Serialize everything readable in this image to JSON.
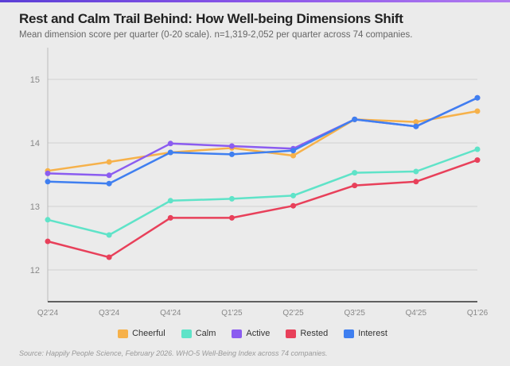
{
  "title": "Rest and Calm Trail Behind: How Well-being Dimensions Shift",
  "subtitle": "Mean dimension score per quarter (0-20 scale). n=1,319-2,052 per quarter across 74 companies.",
  "source": "Source: Happily People Science, February 2026. WHO-5 Well-Being Index across 74 companies.",
  "chart_data": {
    "type": "line",
    "categories": [
      "Q2'24",
      "Q3'24",
      "Q4'24",
      "Q1'25",
      "Q2'25",
      "Q3'25",
      "Q4'25",
      "Q1'26"
    ],
    "ylim": [
      11.5,
      15.5
    ],
    "yticks": [
      "12",
      "13",
      "14",
      "15"
    ],
    "grid": true,
    "legend_placement": "bottom",
    "series": [
      {
        "name": "Cheerful",
        "color": "#f6b14a",
        "values": [
          13.56,
          13.7,
          13.85,
          13.92,
          13.8,
          14.37,
          14.33,
          14.5
        ]
      },
      {
        "name": "Calm",
        "color": "#5fe3c8",
        "values": [
          12.79,
          12.55,
          13.09,
          13.12,
          13.17,
          13.53,
          13.55,
          13.9
        ]
      },
      {
        "name": "Active",
        "color": "#8b5cf0",
        "values": [
          13.52,
          13.49,
          13.99,
          13.95,
          13.91,
          14.37,
          14.26,
          14.71
        ]
      },
      {
        "name": "Rested",
        "color": "#e8405a",
        "values": [
          12.45,
          12.2,
          12.82,
          12.82,
          13.01,
          13.33,
          13.39,
          13.73
        ]
      },
      {
        "name": "Interest",
        "color": "#3f7ff0",
        "values": [
          13.39,
          13.36,
          13.85,
          13.82,
          13.88,
          14.37,
          14.26,
          14.71
        ]
      }
    ]
  }
}
